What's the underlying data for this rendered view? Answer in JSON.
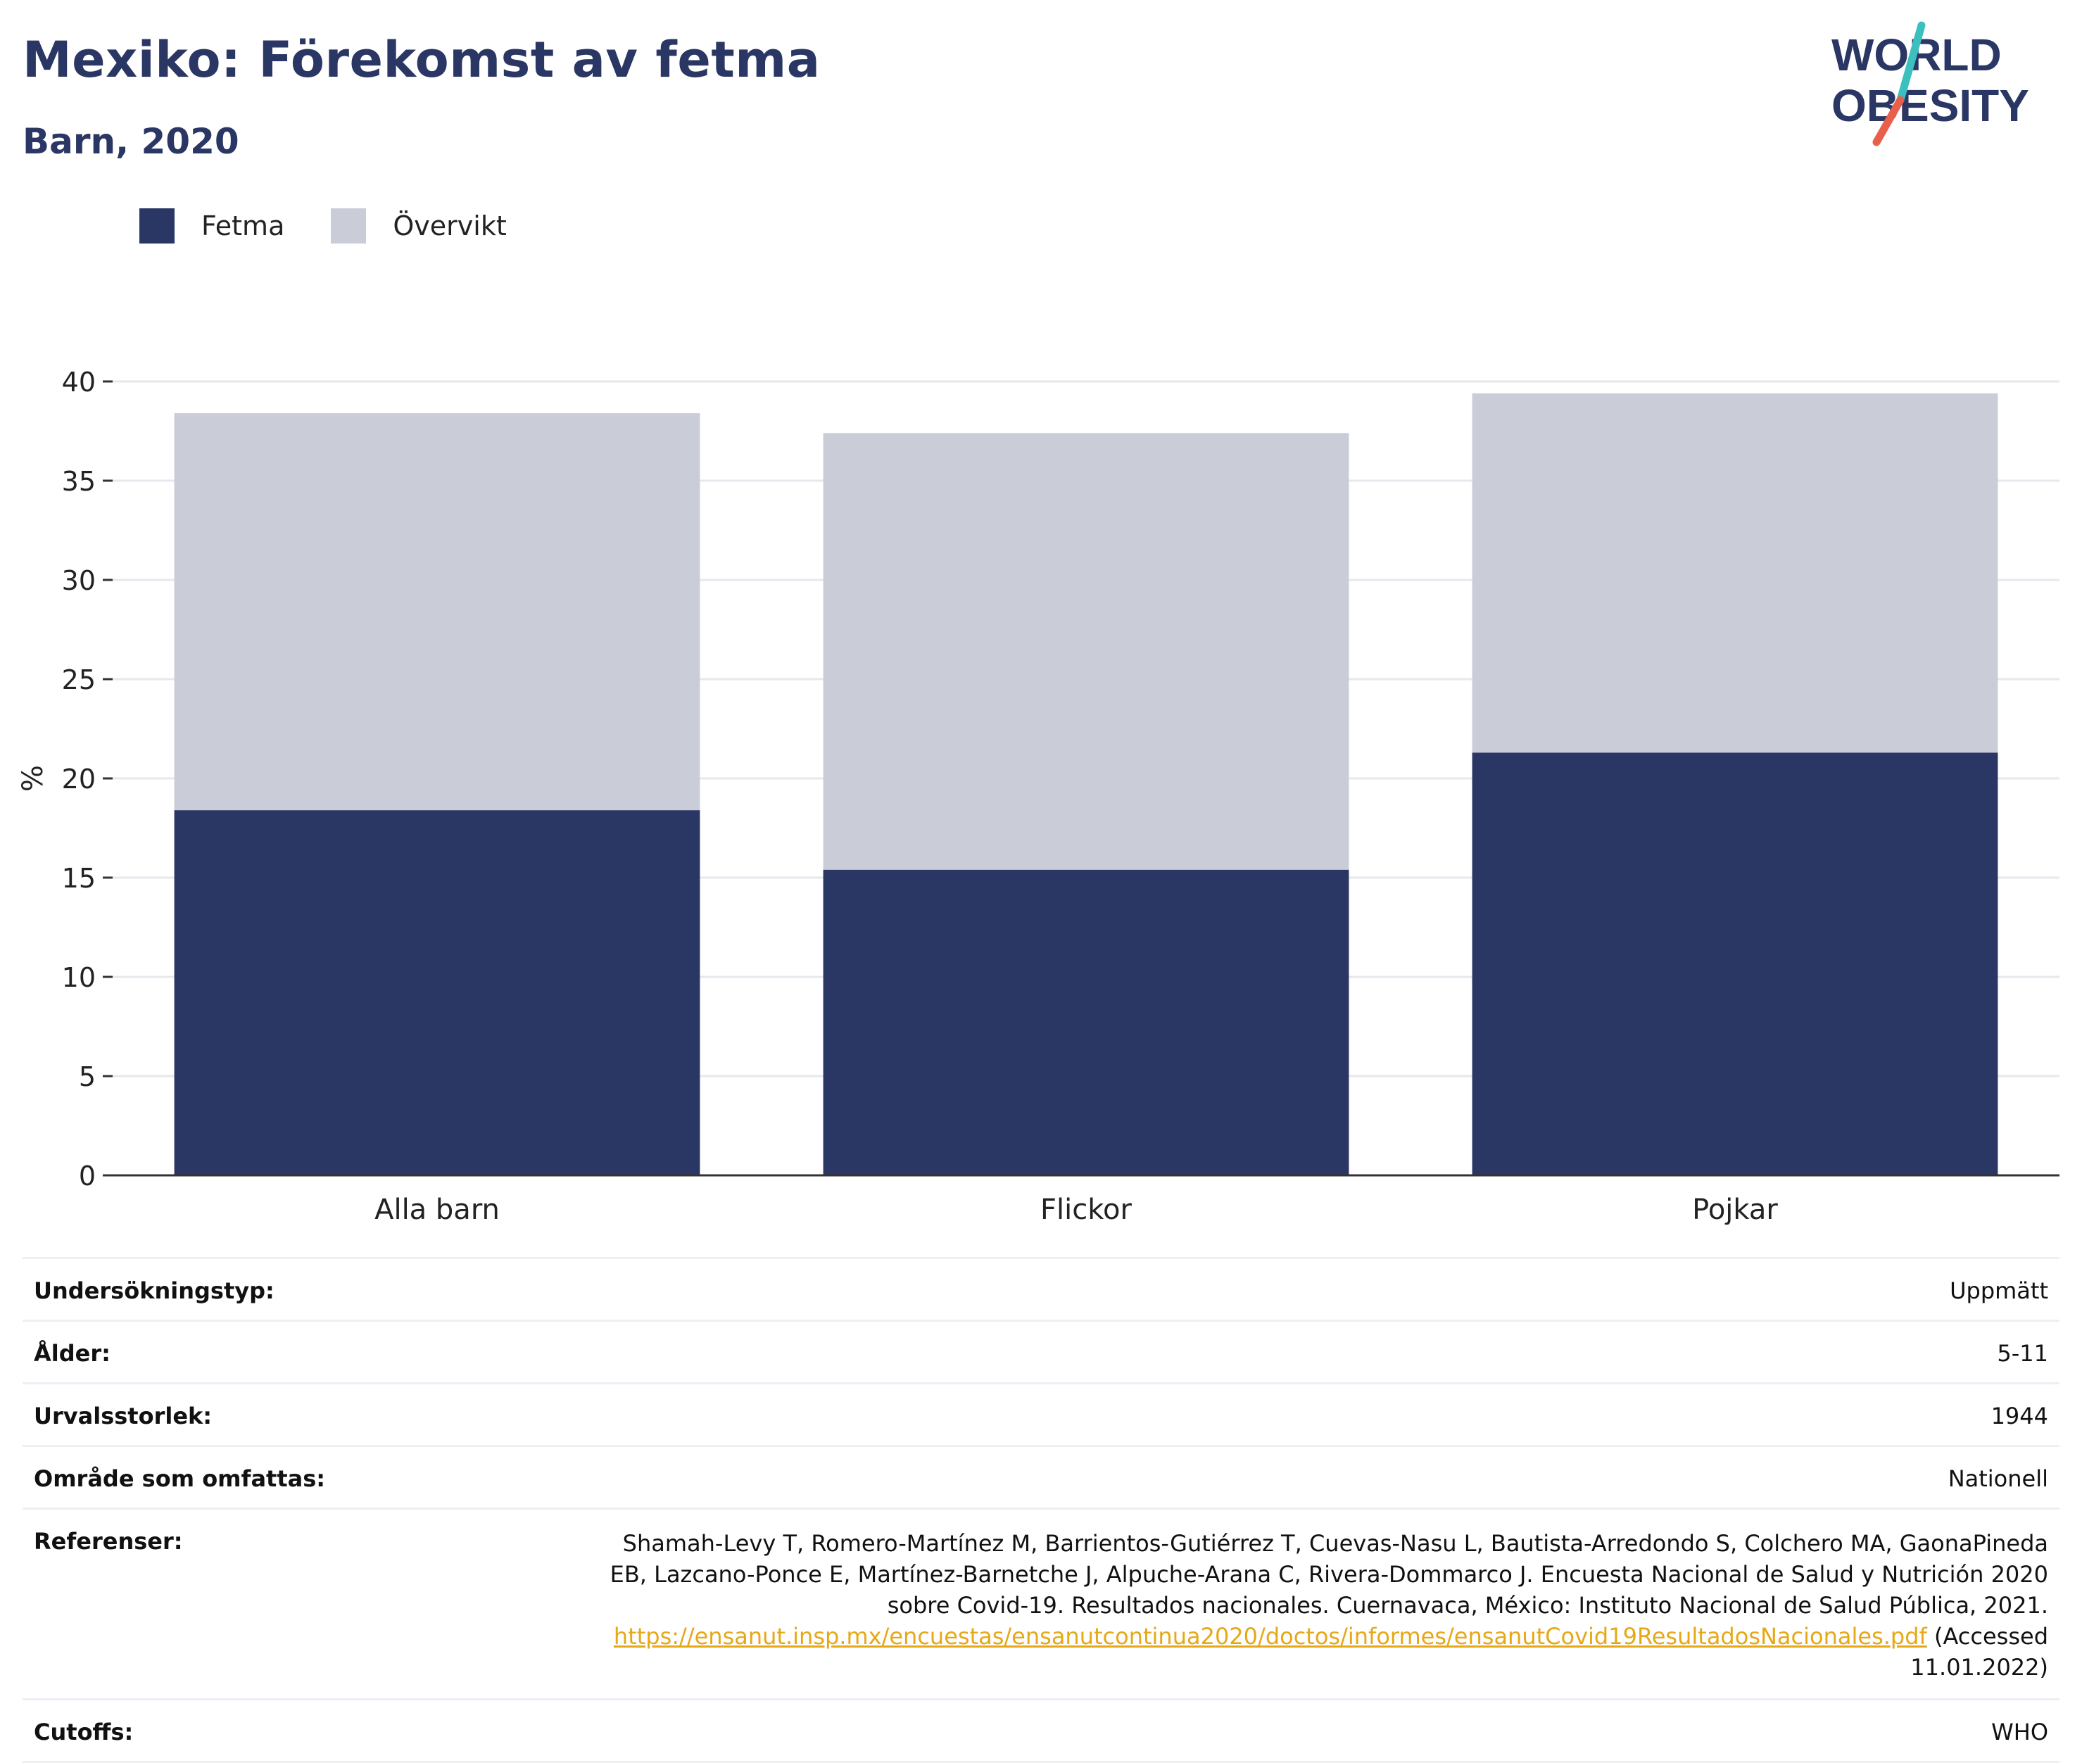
{
  "header": {
    "title": "Mexiko: Förekomst av fetma",
    "subtitle": "Barn, 2020"
  },
  "logo": {
    "line1": "WORLD",
    "line2": "OBESITY",
    "icon": "world-obesity-logo",
    "colors": {
      "text": "#2a3663",
      "slash_top": "#3bbfbf",
      "slash_bottom": "#e8604c"
    }
  },
  "colors": {
    "fetma": "#2a3663",
    "overvikt": "#caccd8",
    "axis": "#333333",
    "grid": "#e6e8ee",
    "link": "#e6a817"
  },
  "chart_data": {
    "type": "bar",
    "stacked": true,
    "categories": [
      "Alla barn",
      "Flickor",
      "Pojkar"
    ],
    "series": [
      {
        "name": "Fetma",
        "values": [
          18.4,
          15.4,
          21.3
        ]
      },
      {
        "name": "Övervikt",
        "values": [
          20.0,
          22.0,
          18.1
        ]
      }
    ],
    "ylabel": "%",
    "xlabel": "",
    "ylim": [
      0,
      40
    ],
    "yticks": [
      0,
      5,
      10,
      15,
      20,
      25,
      30,
      35,
      40
    ],
    "grid": true,
    "legend": "top-left"
  },
  "info": {
    "rows": [
      {
        "key": "Undersökningstyp:",
        "value": "Uppmätt"
      },
      {
        "key": "Ålder:",
        "value": "5-11"
      },
      {
        "key": "Urvalsstorlek:",
        "value": "1944"
      },
      {
        "key": "Område som omfattas:",
        "value": "Nationell"
      }
    ],
    "references": {
      "key": "Referenser:",
      "text": "Shamah-Levy T, Romero-Martínez M, Barrientos-Gutiérrez T, Cuevas-Nasu L, Bautista-Arredondo S, Colchero MA, GaonaPineda EB, Lazcano-Ponce E, Martínez-Barnetche J, Alpuche-Arana C, Rivera-Dommarco J. Encuesta Nacional de Salud y Nutrición 2020 sobre Covid-19. Resultados nacionales. Cuernavaca, México: Instituto Nacional de Salud Pública, 2021.",
      "link": "https://ensanut.insp.mx/encuestas/ensanutcontinua2020/doctos/informes/ensanutCovid19ResultadosNacionales.pdf",
      "suffix": "(Accessed 11.01.2022)"
    },
    "cutoffs": {
      "key": "Cutoffs:",
      "value": "WHO"
    }
  }
}
